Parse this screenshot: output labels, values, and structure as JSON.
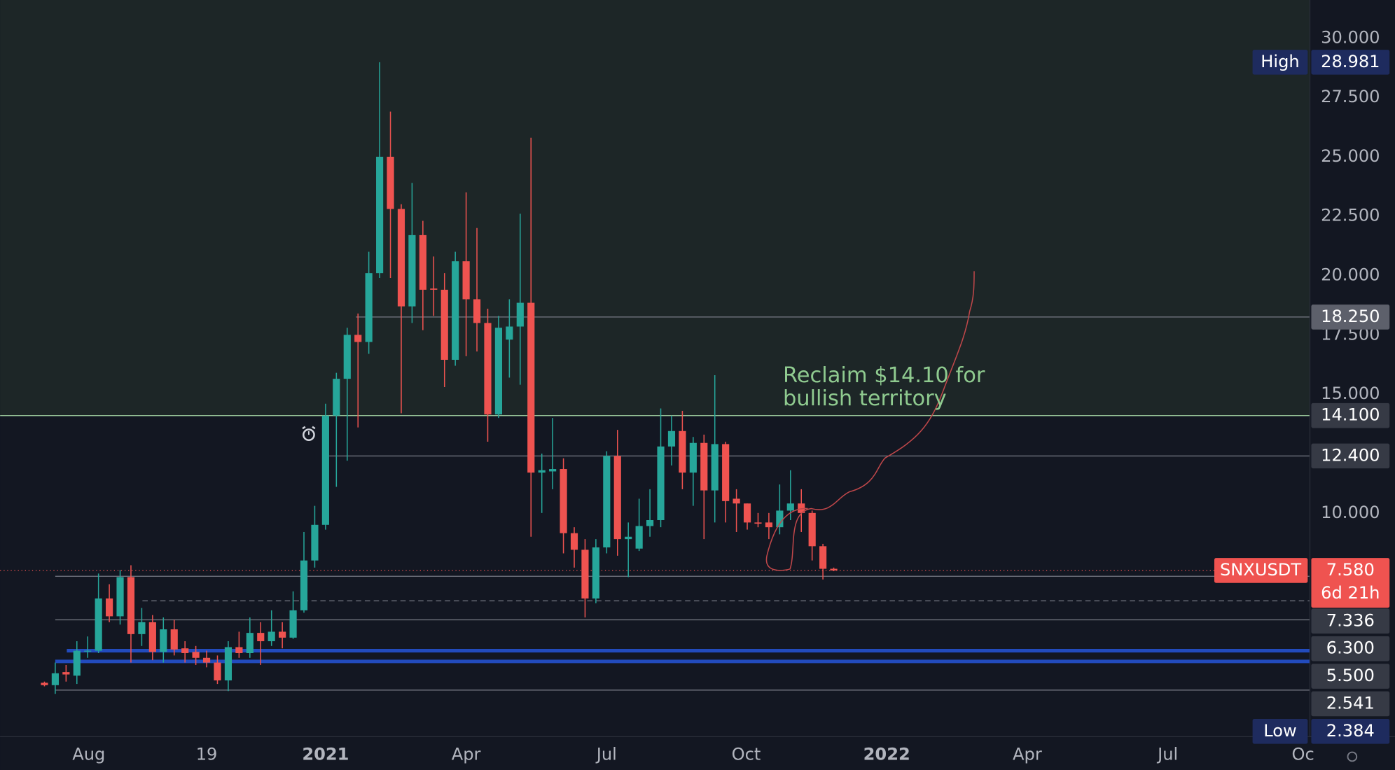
{
  "chart_data": {
    "type": "candlestick",
    "symbol": "SNXUSDT",
    "countdown": "6d 21h",
    "last_price": 7.58,
    "last_price_label": "7.580",
    "up_color": "#26a69a",
    "down_color": "#ef5350",
    "open": [
      2.85,
      2.75,
      3.3,
      3.15,
      4.2,
      4.2,
      6.4,
      5.65,
      7.3,
      4.9,
      5.4,
      4.15,
      5.1,
      4.3,
      4.15,
      3.9,
      3.7,
      2.95,
      4.35,
      4.1,
      4.95,
      4.6,
      5.0,
      4.75,
      5.9,
      8.0,
      9.5,
      14.1,
      15.65,
      17.5,
      17.2,
      20.1,
      25.0,
      22.8,
      18.7,
      21.7,
      19.45,
      19.4,
      16.45,
      20.6,
      19.0,
      18.0,
      14.15,
      17.3,
      17.85,
      18.85,
      11.7,
      11.75,
      11.85,
      9.15,
      8.45,
      6.4,
      8.55,
      12.4,
      8.9,
      8.5,
      9.45,
      9.7,
      12.8,
      13.45,
      11.7,
      12.95,
      10.95,
      12.9,
      10.6,
      10.4,
      9.6,
      9.6,
      9.4,
      10.1,
      10.4,
      10.0,
      8.6,
      7.65
    ],
    "high": [
      2.9,
      3.7,
      3.6,
      4.6,
      4.8,
      7.45,
      7.0,
      7.6,
      7.8,
      6.0,
      5.7,
      5.6,
      5.5,
      4.6,
      4.4,
      4.2,
      4.0,
      4.6,
      5.0,
      5.6,
      5.4,
      5.9,
      5.4,
      6.7,
      9.2,
      10.3,
      14.6,
      15.9,
      17.8,
      18.4,
      21.0,
      28.981,
      26.9,
      23.0,
      23.9,
      22.3,
      20.8,
      20.1,
      21.0,
      23.5,
      22.0,
      18.6,
      18.3,
      19.0,
      22.6,
      25.8,
      12.5,
      14.0,
      12.3,
      9.4,
      8.9,
      8.9,
      12.6,
      13.5,
      9.6,
      10.6,
      11.0,
      14.4,
      14.1,
      14.3,
      13.2,
      13.3,
      15.8,
      13.0,
      11.0,
      10.4,
      10.0,
      10.0,
      11.2,
      11.8,
      11.0,
      10.1,
      8.7,
      7.7
    ],
    "low": [
      2.7,
      2.384,
      2.9,
      2.8,
      3.9,
      4.1,
      5.4,
      5.3,
      3.7,
      4.4,
      3.8,
      3.7,
      4.0,
      3.7,
      3.6,
      3.5,
      2.8,
      2.5,
      3.9,
      3.9,
      3.6,
      4.4,
      4.3,
      4.7,
      5.8,
      7.7,
      9.3,
      11.1,
      12.2,
      13.6,
      16.7,
      19.9,
      19.9,
      14.2,
      18.0,
      17.7,
      18.3,
      15.3,
      16.2,
      16.6,
      16.8,
      13.0,
      14.0,
      15.7,
      15.4,
      9.0,
      10.0,
      11.0,
      8.3,
      7.7,
      5.6,
      6.2,
      8.3,
      8.2,
      7.3,
      8.4,
      9.0,
      9.4,
      12.0,
      11.0,
      10.3,
      8.9,
      9.6,
      9.6,
      9.2,
      9.3,
      9.4,
      8.9,
      9.1,
      9.7,
      9.2,
      8.0,
      7.2,
      7.55
    ],
    "close": [
      2.75,
      3.25,
      3.2,
      4.2,
      4.2,
      6.4,
      5.65,
      7.3,
      4.9,
      5.4,
      4.15,
      5.1,
      4.25,
      4.1,
      3.9,
      3.7,
      2.95,
      4.35,
      4.1,
      4.95,
      4.6,
      5.0,
      4.75,
      5.9,
      8.0,
      9.5,
      14.1,
      15.65,
      17.5,
      17.2,
      20.1,
      25.0,
      22.8,
      18.7,
      21.7,
      19.4,
      19.4,
      16.45,
      20.6,
      19.0,
      18.0,
      14.15,
      17.8,
      17.85,
      18.85,
      11.7,
      11.8,
      11.85,
      9.15,
      8.45,
      6.4,
      8.55,
      12.4,
      8.9,
      9.0,
      9.45,
      9.7,
      12.8,
      13.45,
      11.7,
      12.95,
      10.95,
      12.9,
      10.5,
      10.4,
      9.6,
      9.55,
      9.4,
      10.1,
      10.4,
      10.0,
      8.6,
      7.65,
      7.58
    ],
    "xlim": [
      -4.1,
      117.0
    ],
    "xticks": [
      {
        "value": 4.1,
        "label": "Aug"
      },
      {
        "value": 15.0,
        "label": "19"
      },
      {
        "value": 26.0,
        "label": "2021"
      },
      {
        "value": 39.0,
        "label": "Apr"
      },
      {
        "value": 52.0,
        "label": "Jul"
      },
      {
        "value": 64.9,
        "label": "Oct"
      },
      {
        "value": 77.9,
        "label": "2022"
      },
      {
        "value": 90.9,
        "label": "Apr"
      },
      {
        "value": 103.9,
        "label": "Jul"
      },
      {
        "value": 116.4,
        "label": "Oc"
      }
    ],
    "ylim": [
      0.6,
      31.6
    ],
    "yticks": [
      {
        "value": 30,
        "label": "30.000"
      },
      {
        "value": 27.5,
        "label": "27.500"
      },
      {
        "value": 25,
        "label": "25.000"
      },
      {
        "value": 22.5,
        "label": "22.500"
      },
      {
        "value": 20,
        "label": "20.000"
      },
      {
        "value": 17.5,
        "label": "17.500"
      },
      {
        "value": 15,
        "label": "15.000"
      },
      {
        "value": 10,
        "label": "10.000"
      }
    ],
    "levels": [
      {
        "value": 18.25,
        "label": "18.250"
      },
      {
        "value": 14.1,
        "label": "14.100"
      },
      {
        "value": 12.4,
        "label": "12.400"
      },
      {
        "value": 7.336,
        "label": "7.336"
      },
      {
        "value": 6.3,
        "label": "6.300"
      },
      {
        "value": 5.5,
        "label": "5.500"
      },
      {
        "value": 2.541,
        "label": "2.541"
      }
    ],
    "support_lines": [
      4.2,
      3.75
    ],
    "high_marker": {
      "label": "High",
      "value": 28.981,
      "value_label": "28.981"
    },
    "low_marker": {
      "label": "Low",
      "value": 2.384,
      "value_label": "2.384"
    },
    "annotation": [
      "Reclaim $14.10 for",
      "bullish territory"
    ]
  }
}
